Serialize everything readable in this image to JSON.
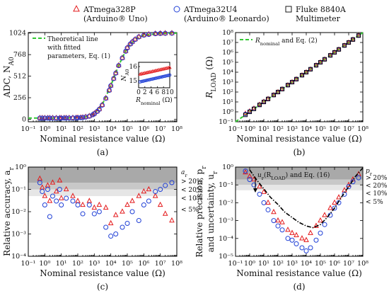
{
  "legend": {
    "items": [
      {
        "marker": "triangle",
        "color": "#e41a1c",
        "line1": "ATmega328P",
        "line2": "(Arduino® Uno)"
      },
      {
        "marker": "circle",
        "color": "#1f3fd6",
        "line1": "ATmega32U4",
        "line2": "(Arduino® Leonardo)"
      },
      {
        "marker": "square",
        "color": "#000000",
        "line1": "Fluke 8840A",
        "line2": "Multimeter"
      }
    ]
  },
  "chart_data": [
    {
      "id": "a",
      "type": "scatter",
      "panel_label": "(a)",
      "xlabel": "Nominal resistance value (Ω)",
      "ylabel": "ADC, N",
      "ylabel_sub": "A0",
      "x_scale": "log",
      "xlim": [
        0.1,
        100000000
      ],
      "ylim": [
        -30,
        1030
      ],
      "x_ticks": [
        "10⁻¹",
        "10⁰",
        "10¹",
        "10²",
        "10³",
        "10⁴",
        "10⁵",
        "10⁶",
        "10⁷",
        "10⁸"
      ],
      "y_ticks": [
        0,
        256,
        512,
        768,
        1024
      ],
      "legend_line": [
        "Theoretical line",
        "with fitted",
        "parameters, Eq. (1)"
      ],
      "series": [
        {
          "marker": "triangle",
          "x": [
            0.5,
            0.7,
            1,
            1.5,
            2,
            3,
            5,
            8,
            10,
            15,
            20,
            30,
            50,
            80,
            100,
            150,
            200,
            300,
            500,
            800,
            1000,
            1500,
            2000,
            3000,
            5000,
            8000,
            10000,
            15000,
            20000,
            30000,
            50000,
            80000,
            100000,
            150000,
            200000,
            300000,
            500000,
            1000000,
            2000000,
            5000000,
            10000000,
            20000000,
            50000000
          ],
          "y": [
            15,
            15,
            15,
            15,
            15,
            15,
            15,
            15,
            15,
            16,
            16,
            16,
            17,
            18,
            19,
            20,
            22,
            28,
            38,
            55,
            68,
            95,
            120,
            170,
            250,
            345,
            400,
            485,
            550,
            640,
            730,
            810,
            850,
            895,
            920,
            950,
            980,
            1000,
            1010,
            1018,
            1020,
            1022,
            1023
          ]
        },
        {
          "marker": "circle",
          "x": [
            0.5,
            0.7,
            1,
            1.5,
            2,
            3,
            5,
            8,
            10,
            15,
            20,
            30,
            50,
            80,
            100,
            150,
            200,
            300,
            500,
            800,
            1000,
            1500,
            2000,
            3000,
            5000,
            8000,
            10000,
            15000,
            20000,
            30000,
            50000,
            80000,
            100000,
            150000,
            200000,
            300000,
            500000,
            1000000,
            2000000,
            5000000,
            10000000,
            20000000,
            50000000
          ],
          "y": [
            13,
            13,
            13,
            13,
            13,
            13,
            13,
            13,
            13,
            14,
            14,
            14,
            15,
            16,
            17,
            18,
            20,
            26,
            36,
            53,
            66,
            93,
            118,
            168,
            248,
            343,
            398,
            483,
            548,
            638,
            728,
            808,
            848,
            893,
            918,
            948,
            978,
            998,
            1008,
            1016,
            1019,
            1021,
            1022
          ]
        }
      ],
      "theory_line": {
        "x": [
          0.1,
          1,
          10,
          30,
          100,
          300,
          1000,
          3000,
          10000,
          30000,
          100000,
          300000,
          1000000,
          10000000,
          100000000
        ],
        "y": [
          14,
          14,
          15,
          16,
          19,
          28,
          68,
          170,
          400,
          640,
          850,
          950,
          1000,
          1020,
          1023
        ]
      },
      "inset": {
        "xlabel": "R",
        "xlabel_sub": "nominal",
        "xlabel_unit": " (Ω)",
        "ylabel": "N",
        "ylabel_sub": "A0",
        "xlim": [
          0,
          10
        ],
        "ylim": [
          14.5,
          16.3
        ],
        "x_ticks": [
          0,
          2,
          4,
          6,
          8,
          10
        ],
        "y_ticks": [
          15,
          16
        ],
        "series": [
          {
            "marker": "triangle",
            "x": [
              0.5,
              1,
              1.5,
              2,
              2.5,
              3,
              3.5,
              4,
              4.5,
              5,
              5.5,
              6,
              6.5,
              7,
              7.5,
              8,
              8.5,
              9,
              9.5,
              10
            ],
            "y": [
              15.45,
              15.48,
              15.5,
              15.53,
              15.55,
              15.58,
              15.6,
              15.62,
              15.65,
              15.67,
              15.7,
              15.72,
              15.75,
              15.77,
              15.8,
              15.82,
              15.85,
              15.87,
              15.9,
              15.92
            ]
          },
          {
            "marker": "circle",
            "x": [
              0.5,
              1,
              1.5,
              2,
              2.5,
              3,
              3.5,
              4,
              4.5,
              5,
              5.5,
              6,
              6.5,
              7,
              7.5,
              8,
              8.5,
              9,
              9.5,
              10
            ],
            "y": [
              14.92,
              14.95,
              14.97,
              15.0,
              15.02,
              15.05,
              15.07,
              15.1,
              15.12,
              15.15,
              15.17,
              15.2,
              15.22,
              15.25,
              15.27,
              15.3,
              15.32,
              15.35,
              15.37,
              15.4
            ]
          }
        ]
      }
    },
    {
      "id": "b",
      "type": "scatter",
      "panel_label": "(b)",
      "xlabel": "Nominal resistance value (Ω)",
      "ylabel": "R",
      "ylabel_sub": "LOAD",
      "ylabel_unit": " (Ω)",
      "x_scale": "log",
      "y_scale": "log",
      "xlim": [
        0.1,
        100000000
      ],
      "ylim": [
        0.1,
        100000000
      ],
      "x_ticks": [
        "10⁻¹",
        "10⁰",
        "10¹",
        "10²",
        "10³",
        "10⁴",
        "10⁵",
        "10⁶",
        "10⁷",
        "10⁸"
      ],
      "y_ticks": [
        "10⁻¹",
        "10⁰",
        "10¹",
        "10²",
        "10³",
        "10⁴",
        "10⁵",
        "10⁶",
        "10⁷",
        "10⁸"
      ],
      "legend_line": {
        "text": "R",
        "sub": "nominal",
        "rest": " and Eq. (2)"
      },
      "series": [
        {
          "marker": "triangle",
          "x": [
            0.5,
            1,
            2,
            5,
            10,
            20,
            50,
            100,
            200,
            500,
            1000,
            2000,
            5000,
            10000,
            20000,
            50000,
            100000,
            200000,
            500000,
            1000000,
            2000000,
            5000000,
            10000000,
            20000000,
            50000000
          ],
          "y": [
            0.7,
            1.2,
            2.3,
            5.5,
            11,
            21,
            50,
            100,
            200,
            500,
            1000,
            2000,
            5000,
            10000,
            20000,
            50000,
            100000,
            200000,
            500000,
            1000000,
            2000000,
            5000000,
            10000000,
            20000000,
            50000000
          ]
        },
        {
          "marker": "circle",
          "x": [
            0.5,
            1,
            2,
            5,
            10,
            20,
            50,
            100,
            200,
            500,
            1000,
            2000,
            5000,
            10000,
            20000,
            50000,
            100000,
            200000,
            500000,
            1000000,
            2000000,
            5000000,
            10000000,
            20000000,
            50000000
          ],
          "y": [
            0.6,
            1.1,
            2.1,
            5.2,
            10.5,
            20,
            49,
            99,
            198,
            495,
            990,
            1990,
            4990,
            9980,
            19950,
            49900,
            99800,
            199500,
            498000,
            995000,
            1990000,
            4970000,
            9930000,
            19800000,
            49500000
          ]
        },
        {
          "marker": "square",
          "x": [
            0.5,
            1,
            2,
            5,
            10,
            20,
            50,
            100,
            200,
            500,
            1000,
            2000,
            5000,
            10000,
            20000,
            50000,
            100000,
            200000,
            500000,
            1000000,
            2000000,
            5000000,
            10000000,
            20000000,
            50000000
          ],
          "y": [
            0.5,
            1,
            2,
            5,
            10,
            20,
            50,
            100,
            200,
            500,
            1000,
            2000,
            5000,
            10000,
            20000,
            50000,
            100000,
            200000,
            500000,
            1000000,
            2000000,
            5000000,
            10000000,
            20000000,
            50000000
          ]
        }
      ]
    },
    {
      "id": "c",
      "type": "scatter",
      "panel_label": "(c)",
      "xlabel": "Nominal resistance value (Ω)",
      "ylabel": "Relative accuracy, a",
      "ylabel_sub": "r",
      "x_scale": "log",
      "y_scale": "log",
      "xlim": [
        0.1,
        100000000
      ],
      "ylim": [
        0.0001,
        1
      ],
      "x_ticks": [
        "10⁻¹",
        "10⁰",
        "10¹",
        "10²",
        "10³",
        "10⁴",
        "10⁵",
        "10⁶",
        "10⁷",
        "10⁸"
      ],
      "y_ticks": [
        "10⁻⁴",
        "10⁻³",
        "10⁻²",
        "10⁻¹",
        "10⁰"
      ],
      "bands": [
        {
          "from": 0.2,
          "to": 1,
          "label": "> 20%",
          "color": "#a9a9a9"
        },
        {
          "from": 0.1,
          "to": 0.2,
          "label": "< 20%",
          "color": "#c8c8c8"
        },
        {
          "from": 0.05,
          "to": 0.1,
          "label": "< 10%",
          "color": "#e6e6e6"
        },
        {
          "from": 0.0001,
          "to": 0.05,
          "label": "< 5%",
          "color": "#ffffff"
        }
      ],
      "band_title": "a",
      "band_title_sub": "r",
      "series": [
        {
          "marker": "triangle",
          "x": [
            0.5,
            0.7,
            1,
            1.5,
            2,
            3,
            5,
            8,
            10,
            20,
            50,
            100,
            200,
            500,
            1000,
            2000,
            5000,
            10000,
            20000,
            50000,
            100000,
            200000,
            500000,
            1000000,
            2000000,
            5000000,
            10000000,
            20000000,
            50000000
          ],
          "y": [
            0.3,
            0.12,
            0.05,
            0.15,
            0.03,
            0.2,
            0.08,
            0.25,
            0.04,
            0.1,
            0.05,
            0.03,
            0.02,
            0.03,
            0.015,
            0.02,
            0.015,
            0.003,
            0.007,
            0.01,
            0.02,
            0.03,
            0.05,
            0.08,
            0.1,
            0.05,
            0.02,
            0.008,
            0.004
          ]
        },
        {
          "marker": "circle",
          "x": [
            0.5,
            0.7,
            1,
            1.5,
            2,
            3,
            5,
            8,
            10,
            20,
            50,
            100,
            200,
            500,
            1000,
            2000,
            5000,
            10000,
            20000,
            50000,
            100000,
            200000,
            500000,
            1000000,
            2000000,
            5000000,
            10000000,
            20000000,
            50000000
          ],
          "y": [
            0.2,
            0.08,
            0.02,
            0.1,
            0.006,
            0.05,
            0.03,
            0.1,
            0.02,
            0.04,
            0.03,
            0.02,
            0.008,
            0.02,
            0.008,
            0.01,
            0.002,
            0.0008,
            0.001,
            0.002,
            0.003,
            0.01,
            0.004,
            0.02,
            0.03,
            0.08,
            0.1,
            0.15,
            0.2
          ]
        }
      ]
    },
    {
      "id": "d",
      "type": "scatter",
      "panel_label": "(d)",
      "xlabel": "Nominal resistance value (Ω)",
      "ylabel": "Relative precision, p",
      "ylabel_sub": "r",
      "ylabel_line2": "and uncertainty, u",
      "ylabel_line2_sub": "r",
      "x_scale": "log",
      "y_scale": "log",
      "xlim": [
        0.1,
        100000000
      ],
      "ylim": [
        1e-05,
        1
      ],
      "x_ticks": [
        "10⁻¹",
        "10⁰",
        "10¹",
        "10²",
        "10³",
        "10⁴",
        "10⁵",
        "10⁶",
        "10⁷",
        "10⁸"
      ],
      "y_ticks": [
        "10⁻⁵",
        "10⁻⁴",
        "10⁻³",
        "10⁻²",
        "10⁻¹",
        "10⁰"
      ],
      "bands": [
        {
          "from": 0.2,
          "to": 1,
          "label": "> 20%",
          "color": "#a9a9a9"
        },
        {
          "from": 0.1,
          "to": 0.2,
          "label": "< 20%",
          "color": "#c8c8c8"
        },
        {
          "from": 0.05,
          "to": 0.1,
          "label": "< 10%",
          "color": "#e6e6e6"
        },
        {
          "from": 1e-05,
          "to": 0.05,
          "label": "< 5%",
          "color": "#ffffff"
        }
      ],
      "band_title": "p",
      "band_title_sub": "r",
      "annotation": {
        "text": "u",
        "sub": "r",
        "rest1": "(R",
        "sub2": "LOAD",
        "rest2": ") and Eq. (16)"
      },
      "uncertainty_curve": {
        "x": [
          1,
          3,
          10,
          30,
          100,
          300,
          1000,
          3000,
          10000,
          30000,
          100000,
          300000,
          1000000,
          3000000,
          10000000,
          30000000,
          100000000
        ],
        "y": [
          0.7,
          0.2,
          0.06,
          0.02,
          0.008,
          0.003,
          0.0015,
          0.0008,
          0.0005,
          0.0004,
          0.0006,
          0.0015,
          0.005,
          0.02,
          0.08,
          0.3,
          0.9
        ]
      },
      "series": [
        {
          "marker": "triangle",
          "x": [
            0.5,
            1,
            2,
            5,
            10,
            20,
            50,
            100,
            200,
            500,
            1000,
            2000,
            5000,
            10000,
            20000,
            50000,
            100000,
            200000,
            500000,
            1000000,
            2000000,
            5000000,
            10000000,
            20000000,
            50000000
          ],
          "y": [
            0.5,
            0.3,
            0.2,
            0.08,
            0.04,
            0.01,
            0.003,
            0.001,
            0.0008,
            0.0003,
            0.0002,
            0.00015,
            0.0001,
            8e-05,
            0.0002,
            0.0005,
            0.001,
            0.002,
            0.005,
            0.01,
            0.02,
            0.05,
            0.1,
            0.2,
            0.4
          ]
        },
        {
          "marker": "circle",
          "x": [
            0.5,
            1,
            2,
            5,
            10,
            20,
            50,
            100,
            200,
            500,
            1000,
            2000,
            5000,
            10000,
            20000,
            50000,
            100000,
            200000,
            500000,
            1000000,
            2000000,
            5000000,
            10000000,
            20000000,
            50000000
          ],
          "y": [
            0.6,
            0.2,
            0.1,
            0.03,
            0.01,
            0.004,
            0.001,
            0.0005,
            0.0003,
            0.0001,
            8e-05,
            5e-05,
            3e-05,
            2e-05,
            3e-05,
            8e-05,
            0.0002,
            0.0006,
            0.002,
            0.005,
            0.01,
            0.03,
            0.08,
            0.15,
            0.25
          ]
        }
      ]
    }
  ]
}
